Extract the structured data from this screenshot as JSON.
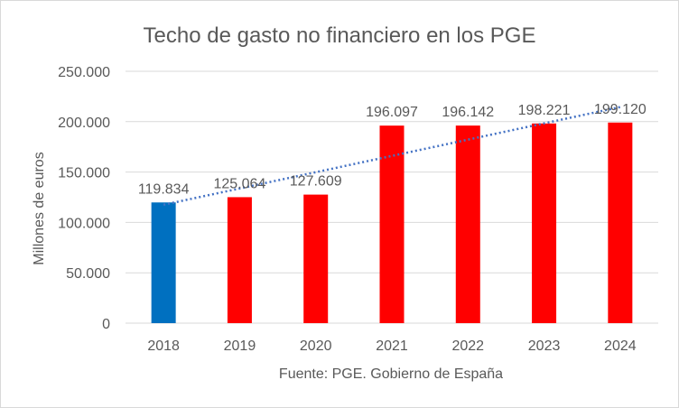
{
  "chart_data": {
    "type": "bar",
    "title": "Techo de gasto no financiero en los PGE",
    "xlabel": "Fuente: PGE. Gobierno de España",
    "ylabel": "Millones de euros",
    "categories": [
      "2018",
      "2019",
      "2020",
      "2021",
      "2022",
      "2023",
      "2024"
    ],
    "values": [
      119834,
      125064,
      127609,
      196097,
      196142,
      198221,
      199120
    ],
    "data_labels": [
      "119.834",
      "125.064",
      "127.609",
      "196.097",
      "196.142",
      "198.221",
      "199.120"
    ],
    "bar_colors": [
      "#0070C0",
      "#FF0000",
      "#FF0000",
      "#FF0000",
      "#FF0000",
      "#FF0000",
      "#FF0000"
    ],
    "ylim": [
      0,
      250000
    ],
    "yticks": [
      0,
      50000,
      100000,
      150000,
      200000,
      250000
    ],
    "ytick_labels": [
      "0",
      "50.000",
      "100.000",
      "150.000",
      "200.000",
      "250.000"
    ],
    "grid": true,
    "trendline": {
      "type": "linear",
      "style": "dotted",
      "color": "#4472C4"
    }
  }
}
